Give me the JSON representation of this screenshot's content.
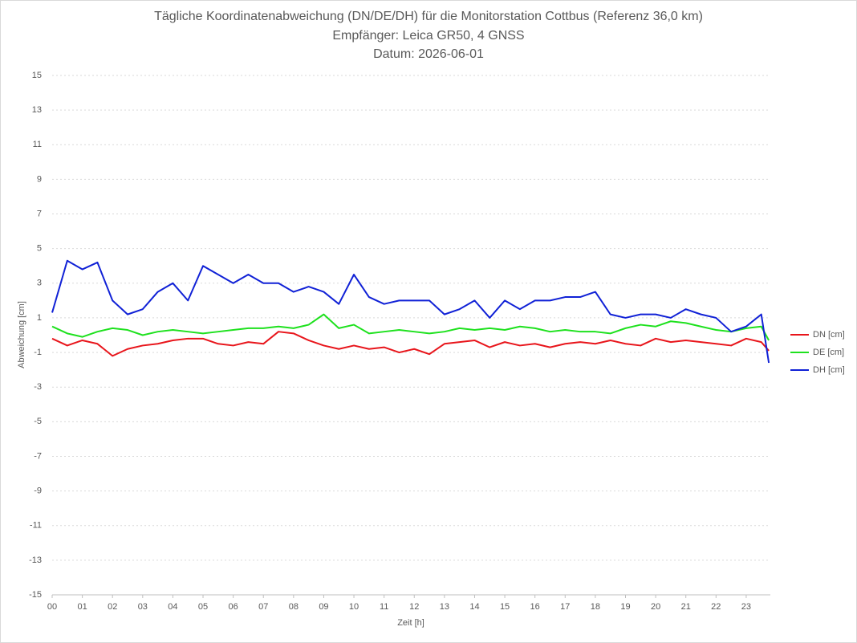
{
  "chart_data": {
    "type": "line",
    "title": [
      "Tägliche Koordinatenabweichung (DN/DE/DH) für die Monitorstation Cottbus (Referenz 36,0 km)",
      "Empfänger: Leica GR50, 4 GNSS",
      "Datum: 2026-06-01"
    ],
    "x_label": "Zeit [h]",
    "y_label": "Abweichung [cm]",
    "x": [
      0,
      0.5,
      1,
      1.5,
      2,
      2.5,
      3,
      3.5,
      4,
      4.5,
      5,
      5.5,
      6,
      6.5,
      7,
      7.5,
      8,
      8.5,
      9,
      9.5,
      10,
      10.5,
      11,
      11.5,
      12,
      12.5,
      13,
      13.5,
      14,
      14.5,
      15,
      15.5,
      16,
      16.5,
      17,
      17.5,
      18,
      18.5,
      19,
      19.5,
      20,
      20.5,
      21,
      21.5,
      22,
      22.5,
      23,
      23.5,
      23.75
    ],
    "series": [
      {
        "name": "DN [cm]",
        "color": "#e8151b",
        "values": [
          -0.2,
          -0.6,
          -0.3,
          -0.5,
          -1.2,
          -0.8,
          -0.6,
          -0.5,
          -0.3,
          -0.2,
          -0.2,
          -0.5,
          -0.6,
          -0.4,
          -0.5,
          0.2,
          0.1,
          -0.3,
          -0.6,
          -0.8,
          -0.6,
          -0.8,
          -0.7,
          -1.0,
          -0.8,
          -1.1,
          -0.5,
          -0.4,
          -0.3,
          -0.7,
          -0.4,
          -0.6,
          -0.5,
          -0.7,
          -0.5,
          -0.4,
          -0.5,
          -0.3,
          -0.5,
          -0.6,
          -0.2,
          -0.4,
          -0.3,
          -0.4,
          -0.5,
          -0.6,
          -0.2,
          -0.4,
          -0.9
        ]
      },
      {
        "name": "DE [cm]",
        "color": "#1ee11e",
        "values": [
          0.5,
          0.1,
          -0.1,
          0.2,
          0.4,
          0.3,
          0.0,
          0.2,
          0.3,
          0.2,
          0.1,
          0.2,
          0.3,
          0.4,
          0.4,
          0.5,
          0.4,
          0.6,
          1.2,
          0.4,
          0.6,
          0.1,
          0.2,
          0.3,
          0.2,
          0.1,
          0.2,
          0.4,
          0.3,
          0.4,
          0.3,
          0.5,
          0.4,
          0.2,
          0.3,
          0.2,
          0.2,
          0.1,
          0.4,
          0.6,
          0.5,
          0.8,
          0.7,
          0.5,
          0.3,
          0.2,
          0.4,
          0.5,
          -0.3
        ]
      },
      {
        "name": "DH [cm]",
        "color": "#1021d6",
        "values": [
          1.3,
          4.3,
          3.8,
          4.2,
          2.0,
          1.2,
          1.5,
          2.5,
          3.0,
          2.0,
          4.0,
          3.5,
          3.0,
          3.5,
          3.0,
          3.0,
          2.5,
          2.8,
          2.5,
          1.8,
          3.5,
          2.2,
          1.8,
          2.0,
          2.0,
          2.0,
          1.2,
          1.5,
          2.0,
          1.0,
          2.0,
          1.5,
          2.0,
          2.0,
          2.2,
          2.2,
          2.5,
          1.2,
          1.0,
          1.2,
          1.2,
          1.0,
          1.5,
          1.2,
          1.0,
          0.2,
          0.5,
          1.2,
          -1.6
        ]
      }
    ],
    "xlim": [
      0,
      23.8
    ],
    "xticks": [
      {
        "value": 0,
        "label": "00"
      },
      {
        "value": 1,
        "label": "01"
      },
      {
        "value": 2,
        "label": "02"
      },
      {
        "value": 3,
        "label": "03"
      },
      {
        "value": 4,
        "label": "04"
      },
      {
        "value": 5,
        "label": "05"
      },
      {
        "value": 6,
        "label": "06"
      },
      {
        "value": 7,
        "label": "07"
      },
      {
        "value": 8,
        "label": "08"
      },
      {
        "value": 9,
        "label": "09"
      },
      {
        "value": 10,
        "label": "10"
      },
      {
        "value": 11,
        "label": "11"
      },
      {
        "value": 12,
        "label": "12"
      },
      {
        "value": 13,
        "label": "13"
      },
      {
        "value": 14,
        "label": "14"
      },
      {
        "value": 15,
        "label": "15"
      },
      {
        "value": 16,
        "label": "16"
      },
      {
        "value": 17,
        "label": "17"
      },
      {
        "value": 18,
        "label": "18"
      },
      {
        "value": 19,
        "label": "19"
      },
      {
        "value": 20,
        "label": "20"
      },
      {
        "value": 21,
        "label": "21"
      },
      {
        "value": 22,
        "label": "22"
      },
      {
        "value": 23,
        "label": "23"
      }
    ],
    "ylim": [
      -15,
      15
    ],
    "yticks": [
      15,
      13,
      11,
      9,
      7,
      5,
      3,
      1,
      -1,
      -3,
      -5,
      -7,
      -9,
      -11,
      -13,
      -15
    ],
    "grid": true,
    "legend": "right"
  }
}
